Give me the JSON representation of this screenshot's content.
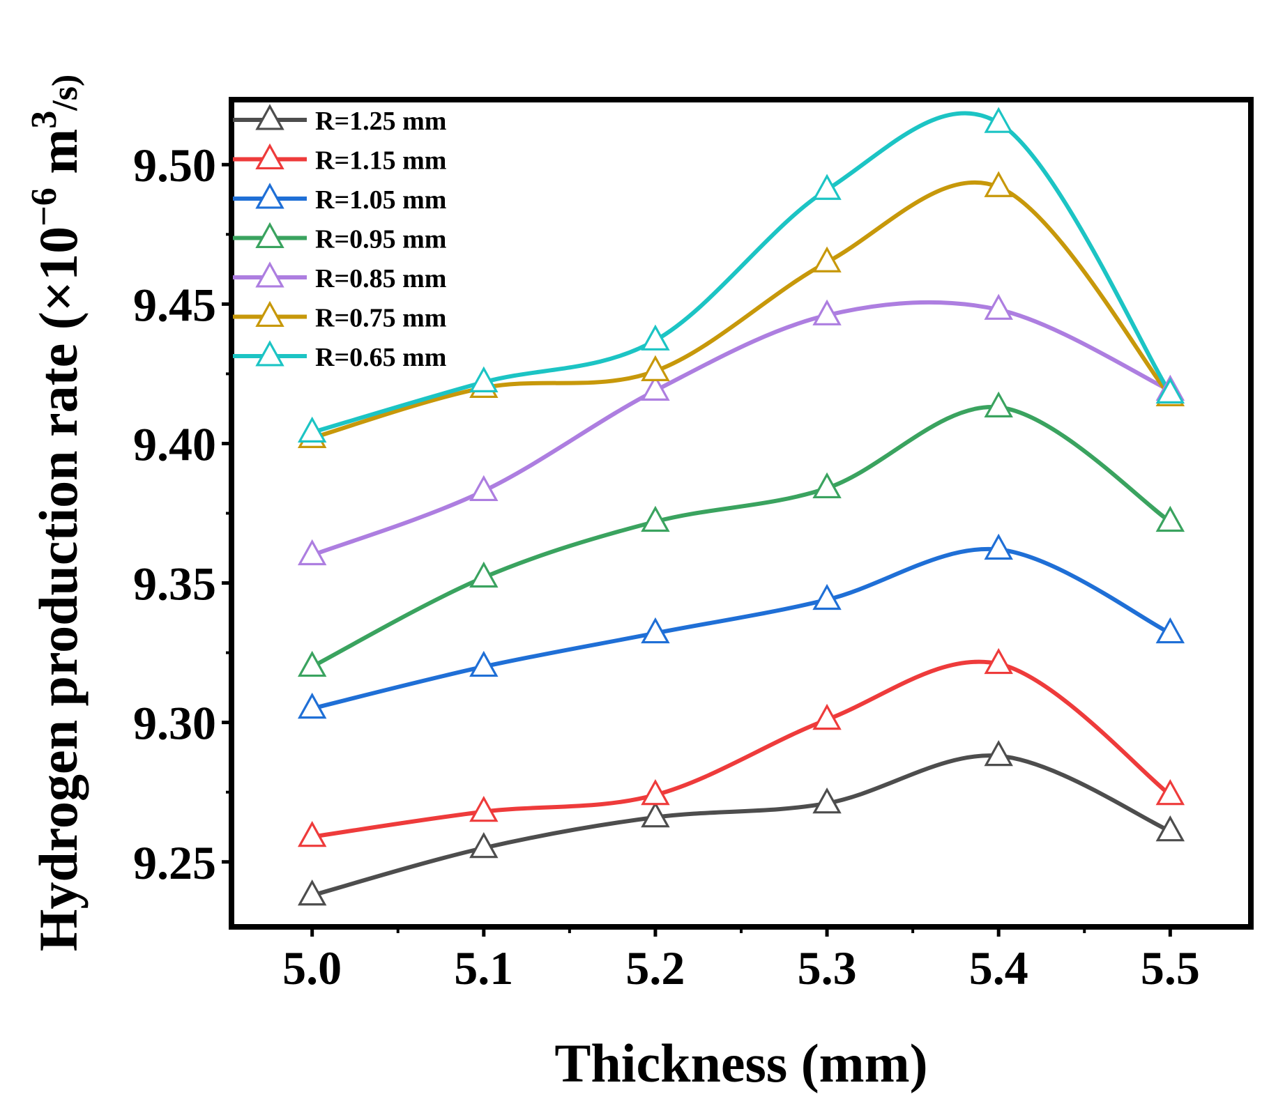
{
  "chart_data": {
    "type": "line",
    "title": "",
    "xlabel": "Thickness (mm)",
    "ylabel": {
      "main": "Hydrogen production rate (×10",
      "exp1": "−6",
      "unit": " m",
      "exp2": "3",
      "tail": "/s)"
    },
    "x": [
      5.0,
      5.1,
      5.2,
      5.3,
      5.4,
      5.5
    ],
    "x_tick_labels": [
      "5.0",
      "5.1",
      "5.2",
      "5.3",
      "5.4",
      "5.5"
    ],
    "xlim": [
      4.953,
      5.547
    ],
    "y_ticks": [
      9.25,
      9.3,
      9.35,
      9.4,
      9.45,
      9.5
    ],
    "y_tick_labels": [
      "9.25",
      "9.30",
      "9.35",
      "9.40",
      "9.45",
      "9.50"
    ],
    "ylim": [
      9.2267,
      9.5233
    ],
    "legend_position": "top-left",
    "marker": "open-triangle",
    "series": [
      {
        "name": "R=1.25 mm",
        "color": "#4d4d4d",
        "values": [
          9.238,
          9.255,
          9.266,
          9.271,
          9.288,
          9.261
        ]
      },
      {
        "name": "R=1.15 mm",
        "color": "#ee3b3b",
        "values": [
          9.259,
          9.268,
          9.274,
          9.301,
          9.321,
          9.274
        ]
      },
      {
        "name": "R=1.05 mm",
        "color": "#1f6fd6",
        "values": [
          9.305,
          9.32,
          9.332,
          9.344,
          9.362,
          9.332
        ]
      },
      {
        "name": "R=0.95 mm",
        "color": "#3aa35f",
        "values": [
          9.32,
          9.352,
          9.372,
          9.384,
          9.413,
          9.372
        ]
      },
      {
        "name": "R=0.85 mm",
        "color": "#ad7ee0",
        "values": [
          9.36,
          9.383,
          9.419,
          9.446,
          9.448,
          9.419
        ]
      },
      {
        "name": "R=0.75 mm",
        "color": "#c7980a",
        "values": [
          9.402,
          9.42,
          9.426,
          9.465,
          9.492,
          9.417
        ]
      },
      {
        "name": "R=0.65 mm",
        "color": "#1cc4c4",
        "values": [
          9.404,
          9.422,
          9.437,
          9.491,
          9.515,
          9.418
        ]
      }
    ]
  }
}
